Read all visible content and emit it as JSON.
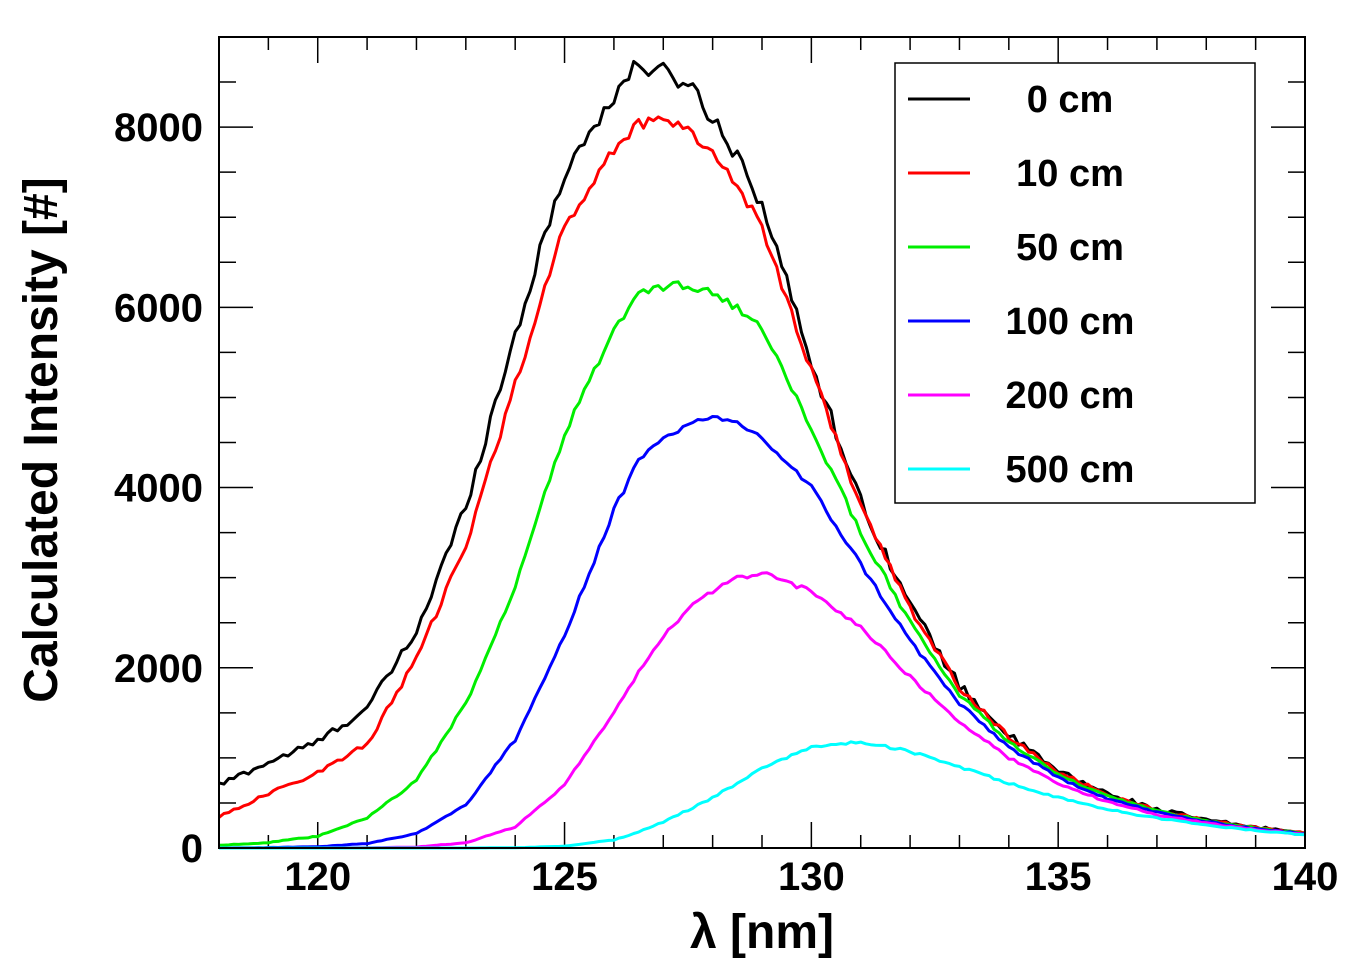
{
  "chart_data": {
    "type": "line",
    "title": "",
    "xlabel": "λ [nm]",
    "ylabel": "Calculated Intensity [#]",
    "xlim": [
      118,
      140
    ],
    "ylim": [
      0,
      9000
    ],
    "xticks": [
      120,
      125,
      130,
      135,
      140
    ],
    "xtick_labels": [
      "120",
      "125",
      "130",
      "135",
      "140"
    ],
    "yticks": [
      0,
      2000,
      4000,
      6000,
      8000
    ],
    "ytick_labels": [
      "0",
      "2000",
      "4000",
      "6000",
      "8000"
    ],
    "legend_position": "top-right",
    "grid": false,
    "x": [
      118,
      119,
      120,
      121,
      122,
      123,
      124,
      125,
      126,
      126.5,
      127,
      127.5,
      128,
      128.5,
      129,
      130,
      131,
      132,
      133,
      134,
      135,
      136,
      137,
      138,
      139,
      140
    ],
    "series": [
      {
        "name": "0 cm",
        "color": "#000000",
        "noise": 110,
        "values": [
          700,
          950,
          1180,
          1550,
          2400,
          3800,
          5700,
          7500,
          8350,
          8700,
          8600,
          8500,
          8100,
          7700,
          7150,
          5400,
          3850,
          2700,
          1800,
          1250,
          850,
          600,
          430,
          310,
          230,
          170
        ]
      },
      {
        "name": "10 cm",
        "color": "#ff0000",
        "noise": 70,
        "values": [
          350,
          600,
          840,
          1150,
          2100,
          3350,
          5150,
          6900,
          7750,
          8050,
          8080,
          8000,
          7700,
          7350,
          6900,
          5300,
          3800,
          2650,
          1780,
          1230,
          840,
          590,
          420,
          305,
          225,
          165
        ]
      },
      {
        "name": "50 cm",
        "color": "#00ee00",
        "noise": 45,
        "values": [
          30,
          60,
          130,
          330,
          750,
          1600,
          2900,
          4600,
          5750,
          6150,
          6230,
          6250,
          6150,
          6000,
          5750,
          4650,
          3500,
          2500,
          1700,
          1180,
          810,
          570,
          410,
          300,
          220,
          160
        ]
      },
      {
        "name": "100 cm",
        "color": "#0000ff",
        "noise": 35,
        "values": [
          0,
          5,
          15,
          50,
          160,
          480,
          1200,
          2350,
          3750,
          4300,
          4550,
          4700,
          4760,
          4720,
          4550,
          4000,
          3150,
          2300,
          1600,
          1120,
          780,
          550,
          395,
          290,
          215,
          155
        ]
      },
      {
        "name": "200 cm",
        "color": "#ff00ff",
        "noise": 25,
        "values": [
          0,
          0,
          0,
          3,
          10,
          60,
          230,
          700,
          1500,
          1950,
          2350,
          2650,
          2850,
          3000,
          3050,
          2850,
          2450,
          1900,
          1400,
          1000,
          720,
          510,
          370,
          275,
          205,
          150
        ]
      },
      {
        "name": "500 cm",
        "color": "#00ffff",
        "noise": 15,
        "values": [
          0,
          0,
          0,
          0,
          0,
          0,
          3,
          20,
          90,
          180,
          290,
          420,
          560,
          720,
          880,
          1120,
          1180,
          1070,
          900,
          720,
          560,
          430,
          330,
          255,
          195,
          145
        ]
      }
    ]
  }
}
